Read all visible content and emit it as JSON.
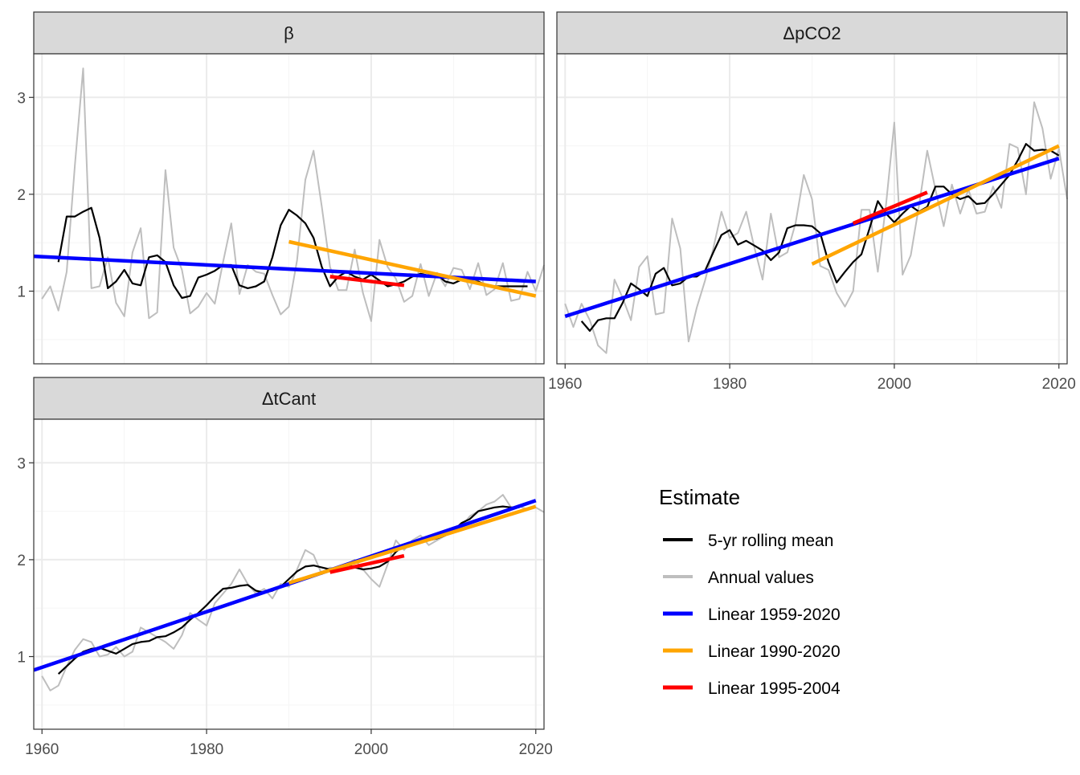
{
  "colors": {
    "rolling": "#000000",
    "annual": "#bebebe",
    "lin_full": "#0000ff",
    "lin_1990": "#ffa500",
    "lin_1995": "#ff0000",
    "strip": "#d9d9d9",
    "grid_major": "#ebebeb",
    "grid_minor": "#f5f5f5",
    "panel_border": "#333333"
  },
  "legend": {
    "title": "Estimate",
    "items": [
      {
        "label": "5-yr rolling mean",
        "color_key": "rolling",
        "width": 3
      },
      {
        "label": "Annual values",
        "color_key": "annual",
        "width": 3
      },
      {
        "label": "Linear 1959-2020",
        "color_key": "lin_full",
        "width": 4
      },
      {
        "label": "Linear 1990-2020",
        "color_key": "lin_1990",
        "width": 4
      },
      {
        "label": "Linear 1995-2004",
        "color_key": "lin_1995",
        "width": 4
      }
    ]
  },
  "chart_data": [
    {
      "type": "line",
      "title": "β",
      "xlim": [
        1959,
        2021
      ],
      "ylim": [
        0.25,
        3.45
      ],
      "x_ticks": [
        1960,
        1980,
        2000,
        2020
      ],
      "y_ticks": [
        1,
        2,
        3
      ],
      "show_x_axis": false,
      "series": [
        {
          "name": "Annual values",
          "color_key": "annual",
          "x_start": 1960,
          "values": [
            0.92,
            1.05,
            0.8,
            1.2,
            2.3,
            3.3,
            1.03,
            1.05,
            1.35,
            0.88,
            0.74,
            1.4,
            1.65,
            0.72,
            0.78,
            2.25,
            1.45,
            1.22,
            0.77,
            0.84,
            0.98,
            0.87,
            1.3,
            1.7,
            0.97,
            1.27,
            1.2,
            1.18,
            0.96,
            0.76,
            0.84,
            1.32,
            2.15,
            2.45,
            1.87,
            1.25,
            1.01,
            1.01,
            1.43,
            0.98,
            0.69,
            1.53,
            1.25,
            1.13,
            0.89,
            0.95,
            1.28,
            0.95,
            1.19,
            1.05,
            1.24,
            1.22,
            1.02,
            1.29,
            0.96,
            1.02,
            1.29,
            0.9,
            0.92,
            1.2,
            1.0,
            1.27
          ]
        },
        {
          "name": "5-yr rolling mean",
          "color_key": "rolling",
          "x_start": 1962,
          "values": [
            1.3,
            1.77,
            1.77,
            1.82,
            1.86,
            1.55,
            1.03,
            1.1,
            1.22,
            1.08,
            1.06,
            1.35,
            1.37,
            1.3,
            1.06,
            0.93,
            0.95,
            1.14,
            1.17,
            1.21,
            1.27,
            1.27,
            1.06,
            1.03,
            1.05,
            1.1,
            1.35,
            1.68,
            1.84,
            1.78,
            1.7,
            1.55,
            1.25,
            1.05,
            1.15,
            1.2,
            1.15,
            1.12,
            1.17,
            1.11,
            1.05,
            1.07,
            1.1,
            1.15,
            1.18,
            1.16,
            1.17,
            1.1,
            1.08,
            1.12,
            1.1,
            1.1,
            1.06,
            1.05,
            1.05,
            1.05,
            1.05,
            1.05
          ]
        },
        {
          "name": "Linear 1959-2020",
          "color_key": "lin_full",
          "x": [
            1959,
            2020
          ],
          "values": [
            1.36,
            1.1
          ]
        },
        {
          "name": "Linear 1990-2020",
          "color_key": "lin_1990",
          "x": [
            1990,
            2020
          ],
          "values": [
            1.51,
            0.95
          ]
        },
        {
          "name": "Linear 1995-2004",
          "color_key": "lin_1995",
          "x": [
            1995,
            2004
          ],
          "values": [
            1.15,
            1.06
          ]
        }
      ]
    },
    {
      "type": "line",
      "title": "ΔpCO2",
      "xlim": [
        1959,
        2021
      ],
      "ylim": [
        0.25,
        3.45
      ],
      "x_ticks": [
        1960,
        1980,
        2000,
        2020
      ],
      "y_ticks": [
        1,
        2,
        3
      ],
      "show_x_axis": true,
      "show_y_axis": false,
      "series": [
        {
          "name": "Annual values",
          "color_key": "annual",
          "x_start": 1960,
          "values": [
            0.87,
            0.63,
            0.87,
            0.7,
            0.44,
            0.36,
            1.12,
            0.93,
            0.7,
            1.25,
            1.36,
            0.76,
            0.78,
            1.75,
            1.44,
            0.48,
            0.83,
            1.11,
            1.44,
            1.82,
            1.55,
            1.6,
            1.82,
            1.45,
            1.12,
            1.8,
            1.35,
            1.4,
            1.7,
            2.2,
            1.95,
            1.26,
            1.22,
            0.98,
            0.84,
            1.0,
            1.84,
            1.84,
            1.2,
            1.9,
            2.74,
            1.17,
            1.37,
            1.88,
            2.45,
            2.05,
            1.67,
            2.1,
            1.8,
            2.05,
            1.8,
            1.82,
            2.08,
            1.86,
            2.52,
            2.48,
            2.0,
            2.95,
            2.68,
            2.16,
            2.47,
            1.95
          ]
        },
        {
          "name": "5-yr rolling mean",
          "color_key": "rolling",
          "x_start": 1962,
          "values": [
            0.69,
            0.59,
            0.7,
            0.72,
            0.72,
            0.88,
            1.08,
            1.02,
            0.95,
            1.18,
            1.24,
            1.06,
            1.08,
            1.15,
            1.15,
            1.21,
            1.4,
            1.58,
            1.63,
            1.48,
            1.52,
            1.47,
            1.42,
            1.32,
            1.4,
            1.65,
            1.68,
            1.68,
            1.67,
            1.6,
            1.3,
            1.09,
            1.2,
            1.3,
            1.38,
            1.65,
            1.93,
            1.8,
            1.71,
            1.8,
            1.88,
            1.82,
            1.87,
            2.08,
            2.08,
            2.0,
            1.95,
            1.98,
            1.9,
            1.91,
            2.0,
            2.1,
            2.2,
            2.35,
            2.52,
            2.45,
            2.46,
            2.45,
            2.4
          ]
        },
        {
          "name": "Linear 1959-2020",
          "color_key": "lin_full",
          "x": [
            1960,
            2020
          ],
          "values": [
            0.74,
            2.37
          ]
        },
        {
          "name": "Linear 1990-2020",
          "color_key": "lin_1990",
          "x": [
            1990,
            2020
          ],
          "values": [
            1.28,
            2.5
          ]
        },
        {
          "name": "Linear 1995-2004",
          "color_key": "lin_1995",
          "x": [
            1995,
            2004
          ],
          "values": [
            1.7,
            2.02
          ]
        }
      ]
    },
    {
      "type": "line",
      "title": "ΔtCant",
      "xlim": [
        1959,
        2021
      ],
      "ylim": [
        0.25,
        3.45
      ],
      "x_ticks": [
        1960,
        1980,
        2000,
        2020
      ],
      "y_ticks": [
        1,
        2,
        3
      ],
      "show_x_axis": true,
      "series": [
        {
          "name": "Annual values",
          "color_key": "annual",
          "x_start": 1960,
          "values": [
            0.8,
            0.65,
            0.7,
            0.9,
            1.07,
            1.18,
            1.15,
            1.0,
            1.02,
            1.1,
            1.0,
            1.05,
            1.3,
            1.25,
            1.2,
            1.15,
            1.08,
            1.22,
            1.45,
            1.38,
            1.32,
            1.55,
            1.65,
            1.75,
            1.9,
            1.75,
            1.65,
            1.7,
            1.6,
            1.75,
            1.72,
            1.9,
            2.1,
            2.05,
            1.85,
            1.92,
            1.9,
            1.95,
            2.0,
            1.9,
            1.8,
            1.72,
            1.95,
            2.2,
            2.1,
            2.2,
            2.25,
            2.15,
            2.2,
            2.25,
            2.3,
            2.35,
            2.45,
            2.5,
            2.57,
            2.6,
            2.67,
            2.54,
            2.55,
            2.52,
            2.54,
            2.49
          ]
        },
        {
          "name": "5-yr rolling mean",
          "color_key": "rolling",
          "x_start": 1962,
          "values": [
            0.82,
            0.9,
            0.98,
            1.05,
            1.08,
            1.09,
            1.06,
            1.03,
            1.08,
            1.13,
            1.15,
            1.16,
            1.2,
            1.21,
            1.25,
            1.3,
            1.38,
            1.45,
            1.53,
            1.62,
            1.7,
            1.71,
            1.73,
            1.74,
            1.68,
            1.66,
            1.68,
            1.72,
            1.8,
            1.88,
            1.93,
            1.94,
            1.92,
            1.9,
            1.92,
            1.95,
            1.92,
            1.9,
            1.91,
            1.93,
            1.98,
            2.08,
            2.15,
            2.17,
            2.18,
            2.2,
            2.22,
            2.25,
            2.3,
            2.38,
            2.42,
            2.5,
            2.52,
            2.54,
            2.55,
            2.54,
            2.54
          ]
        },
        {
          "name": "Linear 1959-2020",
          "color_key": "lin_full",
          "x": [
            1959,
            2020
          ],
          "values": [
            0.86,
            2.61
          ]
        },
        {
          "name": "Linear 1990-2020",
          "color_key": "lin_1990",
          "x": [
            1990,
            2020
          ],
          "values": [
            1.76,
            2.55
          ]
        },
        {
          "name": "Linear 1995-2004",
          "color_key": "lin_1995",
          "x": [
            1995,
            2004
          ],
          "values": [
            1.87,
            2.04
          ]
        }
      ]
    }
  ]
}
